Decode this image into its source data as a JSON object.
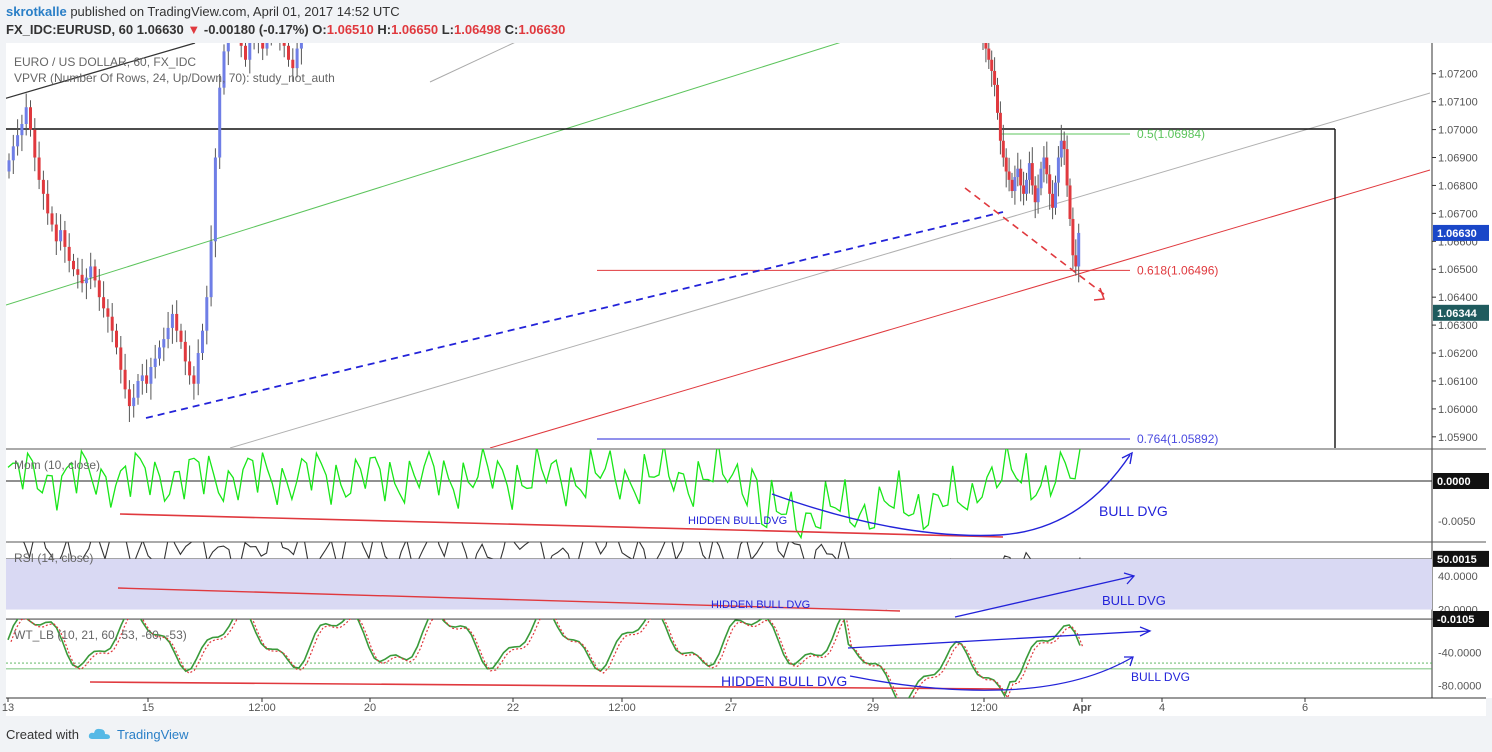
{
  "header": {
    "author": "skrotkalle",
    "published": "published on TradingView.com, April 01, 2017 14:52 UTC",
    "symbol": "FX_IDC:EURUSD, 60",
    "last": "1.06630",
    "change_arrow": "▼",
    "change": "-0.00180 (-0.17%)",
    "o_label": "O:",
    "o": "1.06510",
    "h_label": "H:",
    "h": "1.06650",
    "l_label": "L:",
    "l": "1.06498",
    "c_label": "C:",
    "c": "1.06630"
  },
  "footer": {
    "created_with": "Created with",
    "brand": "TradingView"
  },
  "colors": {
    "up": "#6f7ee6",
    "down": "#e0393e",
    "mom": "#19e619",
    "rsi_band": "#d9d9f3",
    "blue_annot": "#2323d9",
    "red_annot": "#e0393e",
    "green_channel": "#5cc45c",
    "gray_channel": "#b0b0b0",
    "last_price_tag": "#1a47c8",
    "dark_tag": "#1f5b5e"
  },
  "chart_data": [
    {
      "type": "candlestick",
      "title": "EURO / US DOLLAR, 60, FX_IDC",
      "study": "VPVR (Number Of Rows, 24, Up/Down, 70): study_not_auth",
      "ylim": [
        1.0586,
        1.0731
      ],
      "y_ticks": [
        "1.07200",
        "1.07100",
        "1.07000",
        "1.06900",
        "1.06800",
        "1.06700",
        "1.06600",
        "1.06500",
        "1.06400",
        "1.06300",
        "1.06200",
        "1.06100",
        "1.06000",
        "1.05900"
      ],
      "x_ticks": [
        "13",
        "15",
        "12:00",
        "20",
        "22",
        "12:00",
        "27",
        "29",
        "12:00",
        "Apr",
        "4",
        "6"
      ],
      "price_tags": [
        {
          "label": "1.06630",
          "value": 1.0663,
          "style": "blue"
        },
        {
          "label": "1.06344",
          "value": 1.06344,
          "style": "dark"
        }
      ],
      "fib_levels": [
        {
          "label": "0.5(1.06984)",
          "value": 1.06984
        },
        {
          "label": "0.618(1.06496)",
          "value": 1.06496
        },
        {
          "label": "0.764(1.05892)",
          "value": 1.05892
        }
      ],
      "closes": [
        1.0689,
        1.0694,
        1.0698,
        1.0702,
        1.0708,
        1.07,
        1.069,
        1.0682,
        1.0677,
        1.067,
        1.0666,
        1.066,
        1.0664,
        1.0658,
        1.0653,
        1.065,
        1.0648,
        1.0645,
        1.0647,
        1.0651,
        1.0646,
        1.064,
        1.0636,
        1.0633,
        1.0628,
        1.0622,
        1.0614,
        1.0607,
        1.0601,
        1.0604,
        1.061,
        1.0612,
        1.0609,
        1.0615,
        1.0618,
        1.0622,
        1.0625,
        1.0629,
        1.0634,
        1.0628,
        1.0624,
        1.0617,
        1.0612,
        1.0609,
        1.062,
        1.0628,
        1.064,
        1.066,
        1.069,
        1.0715,
        1.0728,
        1.074,
        1.0745,
        1.0738,
        1.073,
        1.0725,
        1.0732,
        1.0738,
        1.0733,
        1.0729,
        1.0735,
        1.0742,
        1.0738,
        1.0734,
        1.073,
        1.0725,
        1.0722,
        1.0729,
        1.0736,
        1.074
      ],
      "late_closes": [
        1.0735,
        1.0729,
        1.0725,
        1.0721,
        1.0716,
        1.0706,
        1.0696,
        1.069,
        1.0685,
        1.0682,
        1.0678,
        1.0683,
        1.0686,
        1.068,
        1.0677,
        1.0682,
        1.0688,
        1.068,
        1.0674,
        1.0679,
        1.0686,
        1.069,
        1.0684,
        1.0677,
        1.0672,
        1.0681,
        1.069,
        1.0696,
        1.0693,
        1.068,
        1.0668,
        1.0655,
        1.0651,
        1.0663
      ]
    },
    {
      "type": "line",
      "title": "Mom (10, close)",
      "ylim": [
        -0.0075,
        0.004
      ],
      "y_ticks": [
        "0.0000",
        "-0.0050"
      ],
      "tag": "0.0000",
      "annotations": [
        "HIDDEN BULL DVG",
        "BULL DVG"
      ]
    },
    {
      "type": "line",
      "title": "RSI (14, close)",
      "ylim": [
        15,
        60
      ],
      "y_ticks": [
        "40.0000",
        "20.0000"
      ],
      "tag": "50.0015",
      "annotations": [
        "HIDDEN BULL DVG",
        "BULL  DVG"
      ]
    },
    {
      "type": "line",
      "title": "WT_LB (10, 21, 60, 53, -60, -53)",
      "ylim": [
        -95,
        0
      ],
      "y_ticks": [
        "-40.0000",
        "-80.0000"
      ],
      "tag": "-0.0105",
      "annotations": [
        "HIDDEN BULL DVG",
        "BULL  DVG"
      ]
    }
  ]
}
